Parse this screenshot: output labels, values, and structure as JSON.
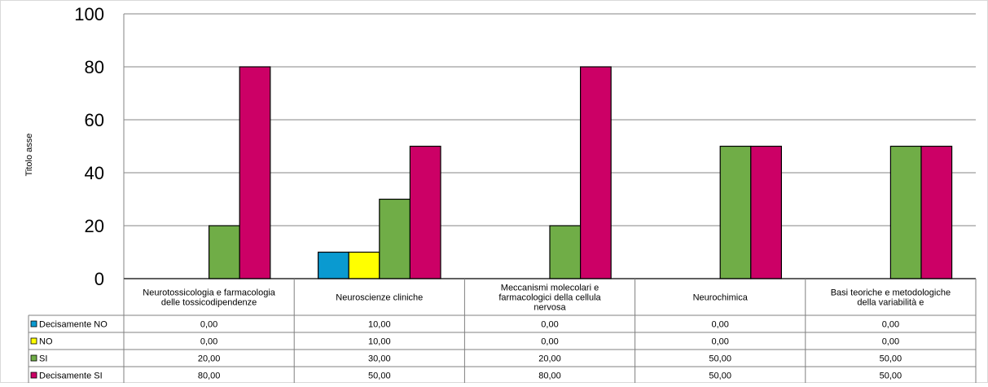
{
  "chart_data": {
    "type": "bar",
    "title": "",
    "xlabel": "",
    "ylabel": "Titolo asse",
    "ylim": [
      0,
      100
    ],
    "yticks": [
      0,
      20,
      40,
      60,
      80,
      100
    ],
    "grid": true,
    "legend": "data-table-left",
    "categories": [
      "Neurotossicologia e farmacologia delle tossicodipendenze",
      "Neuroscienze cliniche",
      "Meccanismi molecolari e farmacologici della cellula nervosa",
      "Neurochimica",
      "Basi teoriche e metodologiche della variabilità e"
    ],
    "series": [
      {
        "name": "Decisamente NO",
        "color": "#0a9ad0",
        "values": [
          0,
          10,
          0,
          0,
          0
        ],
        "labels": [
          "0,00",
          "10,00",
          "0,00",
          "0,00",
          "0,00"
        ]
      },
      {
        "name": "NO",
        "color": "#ffff00",
        "values": [
          0,
          10,
          0,
          0,
          0
        ],
        "labels": [
          "0,00",
          "10,00",
          "0,00",
          "0,00",
          "0,00"
        ]
      },
      {
        "name": "SI",
        "color": "#70ad47",
        "values": [
          20,
          30,
          20,
          50,
          50
        ],
        "labels": [
          "20,00",
          "30,00",
          "20,00",
          "50,00",
          "50,00"
        ]
      },
      {
        "name": "Decisamente SI",
        "color": "#cc0066",
        "values": [
          80,
          50,
          80,
          50,
          50
        ],
        "labels": [
          "80,00",
          "50,00",
          "80,00",
          "50,00",
          "50,00"
        ]
      }
    ]
  }
}
